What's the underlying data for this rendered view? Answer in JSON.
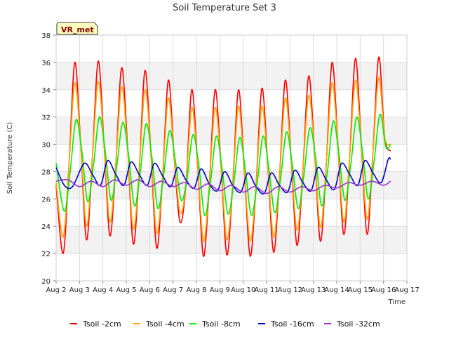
{
  "chart_data": {
    "type": "line",
    "title": "Soil Temperature Set 3",
    "xlabel": "Time",
    "ylabel": "Soil Temperature (C)",
    "badge": "VR_met",
    "xlim": [
      2,
      17
    ],
    "ylim": [
      20,
      38
    ],
    "x_ticks": [
      {
        "value": 2,
        "label": "Aug 2"
      },
      {
        "value": 3,
        "label": "Aug 3"
      },
      {
        "value": 4,
        "label": "Aug 4"
      },
      {
        "value": 5,
        "label": "Aug 5"
      },
      {
        "value": 6,
        "label": "Aug 6"
      },
      {
        "value": 7,
        "label": "Aug 7"
      },
      {
        "value": 8,
        "label": "Aug 8"
      },
      {
        "value": 9,
        "label": "Aug 9"
      },
      {
        "value": 10,
        "label": "Aug 10"
      },
      {
        "value": 11,
        "label": "Aug 11"
      },
      {
        "value": 12,
        "label": "Aug 12"
      },
      {
        "value": 13,
        "label": "Aug 13"
      },
      {
        "value": 14,
        "label": "Aug 14"
      },
      {
        "value": 15,
        "label": "Aug 15"
      },
      {
        "value": 16,
        "label": "Aug 16"
      },
      {
        "value": 17,
        "label": "Aug 17"
      }
    ],
    "y_ticks": [
      20,
      22,
      24,
      26,
      28,
      30,
      32,
      34,
      36,
      38
    ],
    "grid": true,
    "legend_position": "bottom",
    "series": [
      {
        "name": "Tsoil -2cm",
        "color": "#ff0000",
        "x": [
          2.0,
          2.3,
          2.55,
          2.8,
          3.05,
          3.3,
          3.55,
          3.8,
          4.05,
          4.3,
          4.55,
          4.8,
          5.05,
          5.3,
          5.55,
          5.8,
          6.05,
          6.3,
          6.55,
          6.8,
          7.05,
          7.3,
          7.55,
          7.8,
          8.05,
          8.3,
          8.55,
          8.8,
          9.05,
          9.3,
          9.55,
          9.8,
          10.05,
          10.3,
          10.55,
          10.8,
          11.05,
          11.3,
          11.55,
          11.8,
          12.05,
          12.3,
          12.55,
          12.8,
          13.05,
          13.3,
          13.55,
          13.8,
          14.05,
          14.3,
          14.55,
          14.8,
          15.05,
          15.3,
          15.55,
          15.8,
          16.05,
          16.3
        ],
        "y": [
          27.0,
          22.0,
          28.5,
          36.0,
          30.0,
          23.0,
          29.0,
          36.1,
          30.0,
          23.3,
          28.5,
          35.6,
          30.0,
          22.7,
          28.0,
          35.4,
          29.5,
          22.4,
          27.5,
          34.7,
          29.0,
          24.3,
          27.0,
          34.0,
          28.5,
          21.8,
          27.0,
          34.0,
          28.5,
          21.9,
          27.0,
          34.0,
          28.0,
          21.8,
          27.0,
          34.1,
          28.5,
          22.1,
          27.5,
          34.7,
          29.0,
          22.6,
          28.0,
          35.0,
          29.5,
          22.9,
          28.5,
          36.0,
          30.0,
          23.4,
          29.0,
          36.3,
          30.0,
          23.4,
          29.5,
          36.4,
          30.5,
          29.5
        ]
      },
      {
        "name": "Tsoil -4cm",
        "color": "#ffa500",
        "x": [
          2.0,
          2.3,
          2.55,
          2.8,
          3.05,
          3.3,
          3.55,
          3.8,
          4.05,
          4.3,
          4.55,
          4.8,
          5.05,
          5.3,
          5.55,
          5.8,
          6.05,
          6.3,
          6.55,
          6.8,
          7.05,
          7.3,
          7.55,
          7.8,
          8.05,
          8.3,
          8.55,
          8.8,
          9.05,
          9.3,
          9.55,
          9.8,
          10.05,
          10.3,
          10.55,
          10.8,
          11.05,
          11.3,
          11.55,
          11.8,
          12.05,
          12.3,
          12.55,
          12.8,
          13.05,
          13.3,
          13.55,
          13.8,
          14.05,
          14.3,
          14.55,
          14.8,
          15.05,
          15.3,
          15.55,
          15.8,
          16.05,
          16.3
        ],
        "y": [
          27.2,
          23.2,
          28.5,
          34.5,
          30.0,
          24.0,
          29.0,
          34.6,
          30.0,
          24.3,
          28.5,
          34.2,
          29.8,
          23.8,
          28.0,
          34.0,
          29.5,
          23.5,
          27.5,
          33.4,
          29.0,
          25.0,
          27.0,
          32.7,
          28.5,
          22.9,
          27.0,
          32.7,
          28.5,
          23.0,
          27.0,
          32.8,
          28.0,
          22.9,
          27.0,
          32.8,
          28.5,
          23.2,
          27.5,
          33.4,
          29.0,
          23.7,
          28.0,
          33.6,
          29.5,
          23.9,
          28.5,
          34.5,
          30.0,
          24.3,
          29.0,
          34.7,
          30.0,
          24.5,
          29.5,
          34.9,
          30.5,
          30.0
        ]
      },
      {
        "name": "Tsoil -8cm",
        "color": "#00ee00",
        "x": [
          2.0,
          2.35,
          2.6,
          2.85,
          3.1,
          3.35,
          3.6,
          3.85,
          4.1,
          4.35,
          4.6,
          4.85,
          5.1,
          5.35,
          5.6,
          5.85,
          6.1,
          6.35,
          6.6,
          6.85,
          7.1,
          7.35,
          7.6,
          7.85,
          8.1,
          8.35,
          8.6,
          8.85,
          9.1,
          9.35,
          9.6,
          9.85,
          10.1,
          10.35,
          10.6,
          10.85,
          11.1,
          11.35,
          11.6,
          11.85,
          12.1,
          12.35,
          12.6,
          12.85,
          13.1,
          13.35,
          13.6,
          13.85,
          14.1,
          14.35,
          14.6,
          14.85,
          15.1,
          15.35,
          15.6,
          15.85,
          16.1,
          16.3
        ],
        "y": [
          28.6,
          25.1,
          28.0,
          31.8,
          29.5,
          25.8,
          28.5,
          32.0,
          29.5,
          25.9,
          28.5,
          31.6,
          29.2,
          25.5,
          28.0,
          31.5,
          29.0,
          25.3,
          27.8,
          31.0,
          28.8,
          25.9,
          27.5,
          30.7,
          28.5,
          24.8,
          27.2,
          30.6,
          28.2,
          24.9,
          27.2,
          30.5,
          28.0,
          24.8,
          27.2,
          30.6,
          28.2,
          25.0,
          27.5,
          30.9,
          28.5,
          25.3,
          27.8,
          31.2,
          29.0,
          25.5,
          28.0,
          31.7,
          29.2,
          25.9,
          28.5,
          32.0,
          29.5,
          26.0,
          28.8,
          32.2,
          29.8,
          30.0
        ]
      },
      {
        "name": "Tsoil -16cm",
        "color": "#0000cc",
        "x": [
          2.0,
          2.35,
          2.7,
          3.2,
          3.55,
          3.9,
          4.2,
          4.55,
          4.9,
          5.2,
          5.55,
          5.9,
          6.2,
          6.55,
          6.9,
          7.2,
          7.55,
          7.9,
          8.2,
          8.55,
          8.9,
          9.2,
          9.55,
          9.9,
          10.2,
          10.55,
          10.9,
          11.2,
          11.55,
          11.9,
          12.2,
          12.55,
          12.9,
          13.2,
          13.55,
          13.9,
          14.2,
          14.55,
          14.9,
          15.2,
          15.55,
          15.9,
          16.2,
          16.3
        ],
        "y": [
          28.3,
          27.0,
          26.9,
          28.6,
          27.8,
          27.0,
          28.8,
          27.8,
          27.0,
          28.7,
          27.8,
          27.0,
          28.6,
          27.7,
          26.9,
          28.3,
          27.4,
          26.8,
          28.2,
          27.1,
          26.6,
          28.0,
          27.0,
          26.5,
          27.9,
          26.9,
          26.4,
          27.9,
          27.0,
          26.5,
          28.1,
          27.2,
          26.6,
          28.3,
          27.4,
          26.7,
          28.6,
          27.8,
          27.0,
          28.8,
          27.9,
          27.2,
          28.9,
          28.9
        ]
      },
      {
        "name": "Tsoil -32cm",
        "color": "#9933cc",
        "x": [
          2.0,
          2.5,
          3.0,
          3.5,
          4.0,
          4.5,
          5.0,
          5.5,
          6.0,
          6.5,
          7.0,
          7.5,
          8.0,
          8.5,
          9.0,
          9.5,
          10.0,
          10.5,
          11.0,
          11.5,
          12.0,
          12.5,
          13.0,
          13.5,
          14.0,
          14.5,
          15.0,
          15.5,
          16.0,
          16.3
        ],
        "y": [
          27.3,
          27.4,
          26.9,
          27.3,
          26.9,
          27.4,
          27.0,
          27.4,
          26.9,
          27.3,
          26.9,
          27.2,
          26.7,
          27.1,
          26.6,
          27.0,
          26.5,
          26.9,
          26.4,
          26.9,
          26.5,
          26.9,
          26.6,
          27.0,
          26.8,
          27.2,
          27.0,
          27.3,
          27.0,
          27.3
        ]
      }
    ]
  }
}
